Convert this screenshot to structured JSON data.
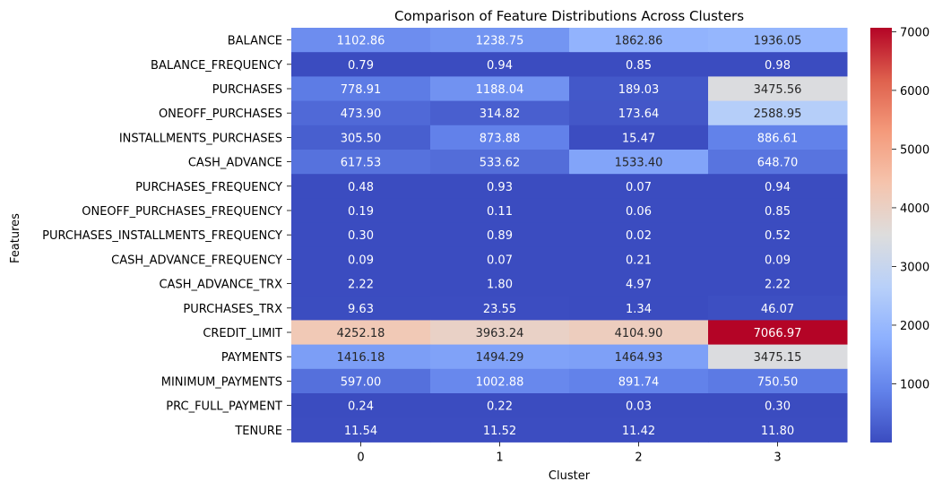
{
  "chart_data": {
    "type": "heatmap",
    "title": "Comparison of Feature Distributions Across Clusters",
    "xlabel": "Cluster",
    "ylabel": "Features",
    "x_categories": [
      "0",
      "1",
      "2",
      "3"
    ],
    "y_categories": [
      "BALANCE",
      "BALANCE_FREQUENCY",
      "PURCHASES",
      "ONEOFF_PURCHASES",
      "INSTALLMENTS_PURCHASES",
      "CASH_ADVANCE",
      "PURCHASES_FREQUENCY",
      "ONEOFF_PURCHASES_FREQUENCY",
      "PURCHASES_INSTALLMENTS_FREQUENCY",
      "CASH_ADVANCE_FREQUENCY",
      "CASH_ADVANCE_TRX",
      "PURCHASES_TRX",
      "CREDIT_LIMIT",
      "PAYMENTS",
      "MINIMUM_PAYMENTS",
      "PRC_FULL_PAYMENT",
      "TENURE"
    ],
    "values": [
      [
        1102.86,
        1238.75,
        1862.86,
        1936.05
      ],
      [
        0.79,
        0.94,
        0.85,
        0.98
      ],
      [
        778.91,
        1188.04,
        189.03,
        3475.56
      ],
      [
        473.9,
        314.82,
        173.64,
        2588.95
      ],
      [
        305.5,
        873.88,
        15.47,
        886.61
      ],
      [
        617.53,
        533.62,
        1533.4,
        648.7
      ],
      [
        0.48,
        0.93,
        0.07,
        0.94
      ],
      [
        0.19,
        0.11,
        0.06,
        0.85
      ],
      [
        0.3,
        0.89,
        0.02,
        0.52
      ],
      [
        0.09,
        0.07,
        0.21,
        0.09
      ],
      [
        2.22,
        1.8,
        4.97,
        2.22
      ],
      [
        9.63,
        23.55,
        1.34,
        46.07
      ],
      [
        4252.18,
        3963.24,
        4104.9,
        7066.97
      ],
      [
        1416.18,
        1494.29,
        1464.93,
        3475.15
      ],
      [
        597.0,
        1002.88,
        891.74,
        750.5
      ],
      [
        0.24,
        0.22,
        0.03,
        0.3
      ],
      [
        11.54,
        11.52,
        11.42,
        11.8
      ]
    ],
    "annotation_format": "2 decimals",
    "colormap": "coolwarm",
    "value_range": [
      0.02,
      7066.97
    ],
    "colorbar_ticks": [
      1000,
      2000,
      3000,
      4000,
      5000,
      6000,
      7000
    ]
  }
}
